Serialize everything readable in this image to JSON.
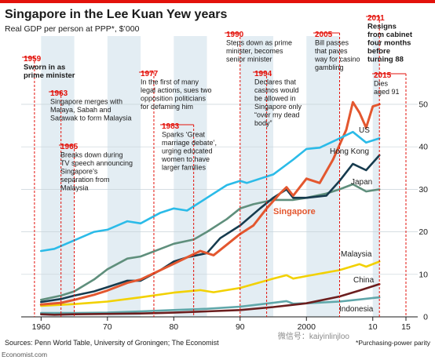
{
  "header": {
    "title": "Singapore in the Lee Kuan Yew years",
    "subtitle": "Real GDP per person at PPP*, $’000"
  },
  "footer": {
    "source": "Sources: Penn World Table, University of Groningen; The Economist",
    "footnote": "*Purchasing-power parity",
    "brand": "Economist.com",
    "watermark": "微信号：kaiyinlinjloo"
  },
  "colors": {
    "singapore": "#e3572f",
    "us": "#2bbbe8",
    "hong_kong": "#163b4e",
    "japan": "#5f8f7c",
    "malaysia": "#f2d100",
    "china": "#6b1e1e",
    "indonesia": "#5fa7aa",
    "annotation": "#e3120b",
    "band": "#e3edf3",
    "grid": "#c8d3d9"
  },
  "chart_data": {
    "type": "line",
    "xlim": [
      1957,
      2015
    ],
    "ylim": [
      0,
      55
    ],
    "x_ticks": [
      {
        "value": 1960,
        "label": "1960"
      },
      {
        "value": 1970,
        "label": "70"
      },
      {
        "value": 1980,
        "label": "80"
      },
      {
        "value": 1990,
        "label": "90"
      },
      {
        "value": 2000,
        "label": "2000"
      },
      {
        "value": 2010,
        "label": "10"
      },
      {
        "value": 2015,
        "label": "15"
      }
    ],
    "y_ticks": [
      {
        "value": 0,
        "label": "0"
      },
      {
        "value": 10,
        "label": "10"
      },
      {
        "value": 20,
        "label": "20"
      },
      {
        "value": 30,
        "label": "30"
      },
      {
        "value": 40,
        "label": "40"
      },
      {
        "value": 50,
        "label": "50"
      }
    ],
    "grid": true,
    "shaded_periods": [
      [
        1960,
        1965
      ],
      [
        1970,
        1975
      ],
      [
        1980,
        1985
      ],
      [
        1990,
        1995
      ],
      [
        2000,
        2005
      ],
      [
        2010,
        2011
      ]
    ],
    "series": [
      {
        "key": "indonesia",
        "name": "Indonesia",
        "x": [
          1960,
          1965,
          1970,
          1975,
          1980,
          1985,
          1990,
          1995,
          1997,
          1998,
          2000,
          2005,
          2008,
          2011
        ],
        "y": [
          0.9,
          0.9,
          1.0,
          1.3,
          1.6,
          1.9,
          2.4,
          3.3,
          3.7,
          3.1,
          3.2,
          3.6,
          4.1,
          4.6
        ]
      },
      {
        "key": "china",
        "name": "China",
        "x": [
          1960,
          1962,
          1965,
          1970,
          1975,
          1978,
          1980,
          1985,
          1990,
          1995,
          2000,
          2005,
          2008,
          2011
        ],
        "y": [
          0.6,
          0.5,
          0.6,
          0.7,
          0.8,
          0.9,
          1.0,
          1.3,
          1.6,
          2.3,
          3.2,
          4.8,
          6.2,
          7.7
        ]
      },
      {
        "key": "malaysia",
        "name": "Malaysia",
        "x": [
          1960,
          1965,
          1970,
          1975,
          1980,
          1984,
          1986,
          1990,
          1995,
          1997,
          1998,
          2000,
          2005,
          2008,
          2009,
          2011
        ],
        "y": [
          2.6,
          3.0,
          3.6,
          4.6,
          5.7,
          6.3,
          5.8,
          6.8,
          9.0,
          9.8,
          9.0,
          9.6,
          11.0,
          12.4,
          11.8,
          13.0
        ]
      },
      {
        "key": "japan",
        "name": "Japan",
        "x": [
          1960,
          1963,
          1965,
          1968,
          1970,
          1973,
          1975,
          1978,
          1980,
          1983,
          1985,
          1988,
          1990,
          1992,
          1995,
          1998,
          2000,
          2003,
          2005,
          2007,
          2009,
          2011
        ],
        "y": [
          4.0,
          5.0,
          6.0,
          8.8,
          11.2,
          13.7,
          14.2,
          16.0,
          17.2,
          18.2,
          20.0,
          23.0,
          25.5,
          26.5,
          27.5,
          27.5,
          28.0,
          29.0,
          30.0,
          31.2,
          29.5,
          30.0
        ]
      },
      {
        "key": "hong_kong",
        "name": "Hong Kong",
        "x": [
          1960,
          1963,
          1965,
          1968,
          1970,
          1973,
          1975,
          1978,
          1980,
          1982,
          1985,
          1987,
          1990,
          1993,
          1995,
          1997,
          1998,
          2000,
          2003,
          2005,
          2007,
          2009,
          2011
        ],
        "y": [
          3.5,
          4.2,
          5.0,
          6.0,
          7.0,
          8.5,
          8.5,
          11.0,
          13.0,
          14.0,
          15.0,
          18.5,
          21.5,
          25.5,
          28.0,
          30.0,
          28.0,
          28.0,
          28.5,
          32.0,
          36.0,
          34.5,
          38.0
        ]
      },
      {
        "key": "singapore",
        "name": "Singapore",
        "x": [
          1960,
          1963,
          1965,
          1968,
          1970,
          1973,
          1975,
          1978,
          1980,
          1982,
          1984,
          1986,
          1988,
          1990,
          1992,
          1994,
          1996,
          1997,
          1998,
          2000,
          2002,
          2004,
          2006,
          2007,
          2008,
          2009,
          2010,
          2011
        ],
        "y": [
          2.9,
          3.3,
          4.0,
          5.2,
          6.2,
          8.0,
          8.8,
          11.0,
          12.5,
          14.0,
          15.5,
          14.5,
          17.0,
          19.5,
          21.5,
          25.5,
          29.0,
          30.5,
          28.5,
          32.5,
          31.5,
          37.0,
          44.0,
          50.5,
          48.0,
          44.5,
          49.5,
          50.0
        ]
      },
      {
        "key": "us",
        "name": "US",
        "x": [
          1960,
          1962,
          1965,
          1968,
          1970,
          1973,
          1975,
          1978,
          1980,
          1982,
          1985,
          1988,
          1990,
          1991,
          1995,
          1998,
          2000,
          2002,
          2005,
          2007,
          2009,
          2011
        ],
        "y": [
          15.5,
          16.0,
          18.0,
          20.0,
          20.5,
          22.5,
          22.0,
          24.5,
          25.5,
          25.0,
          28.0,
          31.0,
          32.0,
          31.5,
          33.5,
          37.0,
          39.5,
          39.8,
          42.0,
          43.5,
          41.0,
          42.0
        ]
      }
    ],
    "series_labels": [
      {
        "key": "us",
        "text": "US"
      },
      {
        "key": "hong_kong",
        "text": "Hong Kong"
      },
      {
        "key": "japan",
        "text": "Japan"
      },
      {
        "key": "singapore",
        "text": "Singapore"
      },
      {
        "key": "malaysia",
        "text": "Malaysia"
      },
      {
        "key": "china",
        "text": "China"
      },
      {
        "key": "indonesia",
        "text": "Indonesia"
      }
    ],
    "annotations": [
      {
        "year": 1959,
        "year_label": "1959",
        "bold": true,
        "lines": [
          "Sworn in as",
          "prime minister"
        ]
      },
      {
        "year": 1963,
        "year_label": "1963",
        "bold": false,
        "lines": [
          "Singapore merges with",
          "Malaya, Sabah and",
          "Sarawak to form Malaysia"
        ]
      },
      {
        "year": 1965,
        "year_label": "1965",
        "bold": false,
        "lines": [
          "Breaks down during",
          "TV speech announcing",
          "Singapore’s",
          "separation from",
          "Malaysia"
        ]
      },
      {
        "year": 1977,
        "year_label": "1977",
        "bold": false,
        "lines": [
          "In the first of many",
          "legal actions, sues two",
          "opposition politicians",
          "for defaming him"
        ]
      },
      {
        "year": 1983,
        "year_label": "1983",
        "bold": false,
        "lines": [
          "Sparks ‘Great",
          "marriage debate’,",
          "urging educated",
          "women to have",
          "larger families"
        ]
      },
      {
        "year": 1990,
        "year_label": "1990",
        "bold": false,
        "lines": [
          "Steps down as prime",
          "minister, becomes",
          "senior minister"
        ]
      },
      {
        "year": 1994,
        "year_label": "1994",
        "bold": false,
        "lines": [
          "Declares that",
          "casinos would",
          "be allowed in",
          "Singapore only",
          "“over my dead",
          "body”"
        ]
      },
      {
        "year": 2005,
        "year_label": "2005",
        "bold": false,
        "lines": [
          "Bill passes",
          "that paves",
          "way for casino",
          "gambling"
        ]
      },
      {
        "year": 2011,
        "year_label": "2011",
        "bold": true,
        "lines": [
          "Resigns",
          "from cabinet",
          "four months",
          "before",
          "turning 88"
        ]
      },
      {
        "year": 2015,
        "year_label": "2015",
        "bold": false,
        "lines": [
          "Dies",
          "aged 91"
        ]
      }
    ]
  }
}
